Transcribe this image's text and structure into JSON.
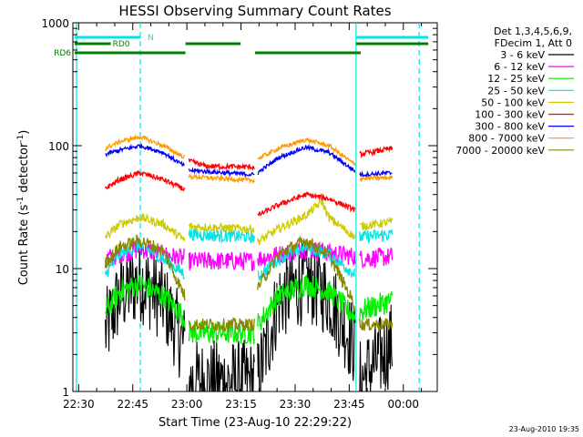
{
  "chart_data": {
    "type": "line",
    "title": "HESSI Observing Summary Count Rates",
    "xlabel": "Start Time (23-Aug-10 22:29:22)",
    "ylabel_parts": [
      "Count Rate (s",
      "-1",
      " detector",
      "-1",
      ")"
    ],
    "y_scale": "log",
    "xlim_min": [
      -1,
      100
    ],
    "ylim": [
      1,
      1000
    ],
    "x_ticks": [
      {
        "min": 0.6,
        "label": "22:30"
      },
      {
        "min": 15.6,
        "label": "22:45"
      },
      {
        "min": 30.6,
        "label": "23:00"
      },
      {
        "min": 45.6,
        "label": "23:15"
      },
      {
        "min": 60.6,
        "label": "23:30"
      },
      {
        "min": 75.6,
        "label": "23:45"
      },
      {
        "min": 90.6,
        "label": "00:00"
      }
    ],
    "y_ticks": [
      {
        "value": 1,
        "label": "1"
      },
      {
        "value": 10,
        "label": "10"
      },
      {
        "value": 100,
        "label": "100"
      },
      {
        "value": 1000,
        "label": "1000"
      }
    ],
    "legend_header": [
      "Det 1,3,4,5,6,9,",
      "FDecim 1, Att 0"
    ],
    "legend_position": "right",
    "vertical_lines": [
      {
        "min": 0.0,
        "style": "solid"
      },
      {
        "min": 17.7,
        "style": "dashed"
      },
      {
        "min": 77.5,
        "style": "solid"
      },
      {
        "min": 95.0,
        "style": "dashed"
      }
    ],
    "flag_bars": [
      {
        "label": "N",
        "color": "#00e5e5",
        "value": 1.32,
        "segments": [
          [
            -0.5,
            17.7
          ],
          [
            77.5,
            97.5
          ]
        ]
      },
      {
        "label": "RD0",
        "color": "#008000",
        "value": 1.2,
        "segments": [
          [
            -0.5,
            9.5
          ],
          [
            30.2,
            45.5
          ],
          [
            77.5,
            97.5
          ]
        ]
      },
      {
        "label": "RD6",
        "color": "#008000",
        "value": 1.1,
        "segments": [
          [
            -0.5,
            30.2
          ],
          [
            49.5,
            78.8
          ]
        ]
      }
    ],
    "segments_min": [
      [
        8.0,
        30.0
      ],
      [
        31.2,
        49.3
      ],
      [
        50.2,
        77.2
      ],
      [
        78.5,
        87.5
      ]
    ],
    "series": [
      {
        "name": "3 - 6 keV",
        "color": "#000000",
        "points": [
          [
            8,
            3
          ],
          [
            12,
            6
          ],
          [
            17.7,
            8
          ],
          [
            24,
            5.5
          ],
          [
            30,
            2.3
          ],
          [
            31.2,
            1.2
          ],
          [
            49.3,
            1.2
          ],
          [
            50.2,
            1.2
          ],
          [
            56,
            5.5
          ],
          [
            63.5,
            8
          ],
          [
            70,
            6
          ],
          [
            77.2,
            2.3
          ],
          [
            78.5,
            1.2
          ],
          [
            87.5,
            2.5
          ]
        ]
      },
      {
        "name": "6 - 12 keV",
        "color": "#ff00ff",
        "points": [
          [
            8,
            12
          ],
          [
            12,
            13
          ],
          [
            17.7,
            14.5
          ],
          [
            24,
            13
          ],
          [
            30,
            12
          ],
          [
            31.2,
            11.5
          ],
          [
            49.3,
            11.5
          ],
          [
            50.2,
            12
          ],
          [
            56,
            13
          ],
          [
            63.5,
            14.5
          ],
          [
            70,
            13.5
          ],
          [
            77.2,
            12.5
          ],
          [
            78.5,
            12
          ],
          [
            87.5,
            12.5
          ]
        ]
      },
      {
        "name": "12 - 25 keV",
        "color": "#00ee00",
        "points": [
          [
            8,
            4.5
          ],
          [
            12,
            6.5
          ],
          [
            17.7,
            7.5
          ],
          [
            24,
            6
          ],
          [
            30,
            4
          ],
          [
            31.2,
            3
          ],
          [
            49.3,
            3
          ],
          [
            50.2,
            3.5
          ],
          [
            56,
            6
          ],
          [
            63.5,
            7.5
          ],
          [
            70,
            6.5
          ],
          [
            77.2,
            4
          ],
          [
            78.5,
            4.5
          ],
          [
            87.5,
            5.5
          ]
        ]
      },
      {
        "name": "25 - 50 keV",
        "color": "#00e5e5",
        "points": [
          [
            8,
            9
          ],
          [
            12,
            13
          ],
          [
            17.7,
            15.5
          ],
          [
            24,
            12
          ],
          [
            30,
            9
          ],
          [
            31.2,
            19
          ],
          [
            49.3,
            18
          ],
          [
            50.2,
            8.5
          ],
          [
            56,
            12
          ],
          [
            63.5,
            15
          ],
          [
            70,
            13
          ],
          [
            77.2,
            9
          ],
          [
            78.5,
            18
          ],
          [
            87.5,
            19
          ]
        ]
      },
      {
        "name": "50 - 100 keV",
        "color": "#cccc00",
        "points": [
          [
            8,
            18
          ],
          [
            12,
            23
          ],
          [
            17.7,
            26
          ],
          [
            24,
            23
          ],
          [
            30,
            17
          ],
          [
            31.2,
            22
          ],
          [
            49.3,
            21
          ],
          [
            50.2,
            16.5
          ],
          [
            56,
            21
          ],
          [
            63.5,
            27
          ],
          [
            68,
            35
          ],
          [
            70,
            26
          ],
          [
            77.2,
            18
          ],
          [
            78.5,
            22
          ],
          [
            87.5,
            24
          ]
        ]
      },
      {
        "name": "100 - 300 keV",
        "color": "#ff0000",
        "points": [
          [
            8,
            45
          ],
          [
            12,
            53
          ],
          [
            17.7,
            60
          ],
          [
            24,
            53
          ],
          [
            30,
            44
          ],
          [
            31.2,
            75
          ],
          [
            36,
            68
          ],
          [
            49.3,
            67
          ],
          [
            50.2,
            27
          ],
          [
            56,
            33
          ],
          [
            63.5,
            40
          ],
          [
            70,
            37
          ],
          [
            77.2,
            30
          ],
          [
            78.5,
            85
          ],
          [
            87.5,
            95
          ]
        ]
      },
      {
        "name": "300 - 800 keV",
        "color": "#0000ff",
        "points": [
          [
            8,
            85
          ],
          [
            12,
            92
          ],
          [
            17.7,
            100
          ],
          [
            24,
            88
          ],
          [
            30,
            68
          ],
          [
            31.2,
            63
          ],
          [
            49.3,
            58
          ],
          [
            50.2,
            60
          ],
          [
            56,
            80
          ],
          [
            63.5,
            97
          ],
          [
            70,
            88
          ],
          [
            77.2,
            62
          ],
          [
            78.5,
            58
          ],
          [
            87.5,
            60
          ]
        ]
      },
      {
        "name": "800 - 7000 keV",
        "color": "#ff9900",
        "points": [
          [
            8,
            95
          ],
          [
            12,
            108
          ],
          [
            17.7,
            118
          ],
          [
            24,
            100
          ],
          [
            30,
            80
          ],
          [
            31.2,
            56
          ],
          [
            49.3,
            52
          ],
          [
            50.2,
            78
          ],
          [
            56,
            95
          ],
          [
            63.5,
            112
          ],
          [
            70,
            100
          ],
          [
            77.2,
            70
          ],
          [
            78.5,
            54
          ],
          [
            87.5,
            55
          ]
        ]
      },
      {
        "name": "7000 - 20000 keV",
        "color": "#888800",
        "points": [
          [
            8,
            11
          ],
          [
            12,
            15
          ],
          [
            17.7,
            17
          ],
          [
            24,
            14
          ],
          [
            30,
            6
          ],
          [
            31.2,
            3.5
          ],
          [
            49.3,
            3.5
          ],
          [
            50.2,
            7
          ],
          [
            56,
            13
          ],
          [
            63.5,
            17
          ],
          [
            70,
            13
          ],
          [
            77.2,
            5
          ],
          [
            78.5,
            3.5
          ],
          [
            87.5,
            3.5
          ]
        ]
      }
    ],
    "timestamp": "23-Aug-2010 19:35"
  }
}
